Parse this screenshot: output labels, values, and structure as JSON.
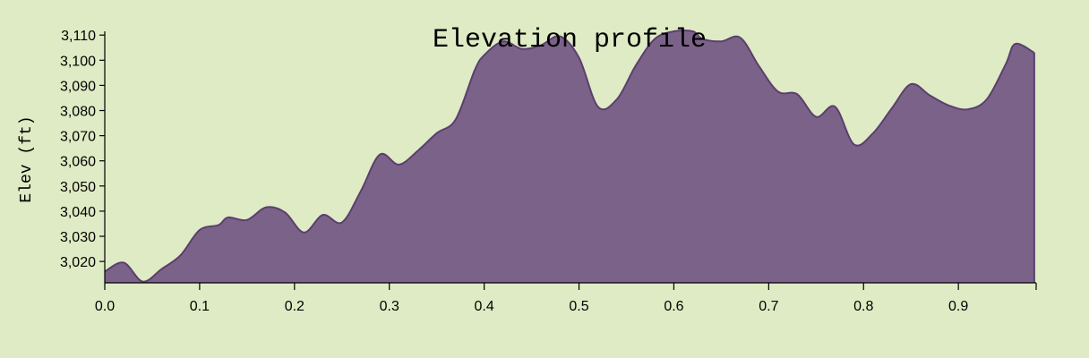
{
  "chart_data": {
    "type": "area",
    "title": "Elevation profile",
    "xlabel": "",
    "ylabel": "Elev (ft)",
    "xlim": [
      0.0,
      0.982
    ],
    "ylim": [
      3011.5,
      3111.5
    ],
    "grid": false,
    "legend": "none",
    "colors": {
      "fill": "#7b6289",
      "stroke": "#5b3f6e",
      "background": "#dfebc4"
    },
    "x_ticks": [
      0.0,
      0.1,
      0.2,
      0.3,
      0.4,
      0.5,
      0.6,
      0.7,
      0.8,
      0.9
    ],
    "x_tick_labels": [
      "0.0",
      "0.1",
      "0.2",
      "0.3",
      "0.4",
      "0.5",
      "0.6",
      "0.7",
      "0.8",
      "0.9"
    ],
    "y_ticks": [
      3020,
      3030,
      3040,
      3050,
      3060,
      3070,
      3080,
      3090,
      3100,
      3110
    ],
    "y_tick_labels": [
      "3,020",
      "3,030",
      "3,040",
      "3,050",
      "3,060",
      "3,070",
      "3,080",
      "3,090",
      "3,100",
      "3,110"
    ],
    "series": [
      {
        "x": [
          0.0,
          0.02,
          0.04,
          0.06,
          0.08,
          0.1,
          0.12,
          0.13,
          0.15,
          0.17,
          0.19,
          0.21,
          0.23,
          0.25,
          0.27,
          0.29,
          0.31,
          0.33,
          0.35,
          0.37,
          0.39,
          0.4,
          0.42,
          0.44,
          0.46,
          0.48,
          0.5,
          0.52,
          0.54,
          0.56,
          0.58,
          0.6,
          0.62,
          0.63,
          0.65,
          0.67,
          0.69,
          0.71,
          0.73,
          0.75,
          0.77,
          0.79,
          0.81,
          0.83,
          0.85,
          0.87,
          0.89,
          0.91,
          0.93,
          0.95,
          0.96,
          0.98
        ],
        "values": [
          3016,
          3019.5,
          3012,
          3017,
          3022.5,
          3032.5,
          3034.5,
          3037.5,
          3036.5,
          3041.5,
          3039.5,
          3031.5,
          3038.5,
          3035.5,
          3048,
          3062.5,
          3058.5,
          3064,
          3071,
          3076.5,
          3096,
          3102,
          3107.5,
          3104.5,
          3106,
          3109.5,
          3101,
          3081.5,
          3084.5,
          3098,
          3108.5,
          3111.5,
          3111.5,
          3108.5,
          3107.5,
          3109,
          3097.5,
          3087.5,
          3086.5,
          3077.5,
          3081.5,
          3066.5,
          3071,
          3081,
          3090.5,
          3086,
          3082,
          3080.5,
          3084.5,
          3098.5,
          3106.5,
          3103
        ]
      }
    ]
  }
}
